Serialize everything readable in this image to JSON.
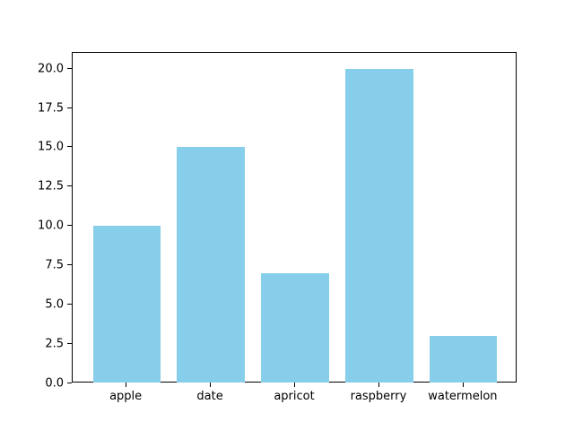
{
  "chart_data": {
    "type": "bar",
    "categories": [
      "apple",
      "date",
      "apricot",
      "raspberry",
      "watermelon"
    ],
    "values": [
      10,
      15,
      7,
      20,
      3
    ],
    "title": "",
    "xlabel": "",
    "ylabel": "",
    "ylim": [
      0,
      21
    ],
    "yticks": [
      0.0,
      2.5,
      5.0,
      7.5,
      10.0,
      12.5,
      15.0,
      17.5,
      20.0
    ],
    "ytick_labels": [
      "0.0",
      "2.5",
      "5.0",
      "7.5",
      "10.0",
      "12.5",
      "15.0",
      "17.5",
      "20.0"
    ],
    "bar_color": "#87CEEB",
    "background_color": "#ffffff",
    "spine_color": "#000000",
    "grid": false,
    "legend": false
  }
}
